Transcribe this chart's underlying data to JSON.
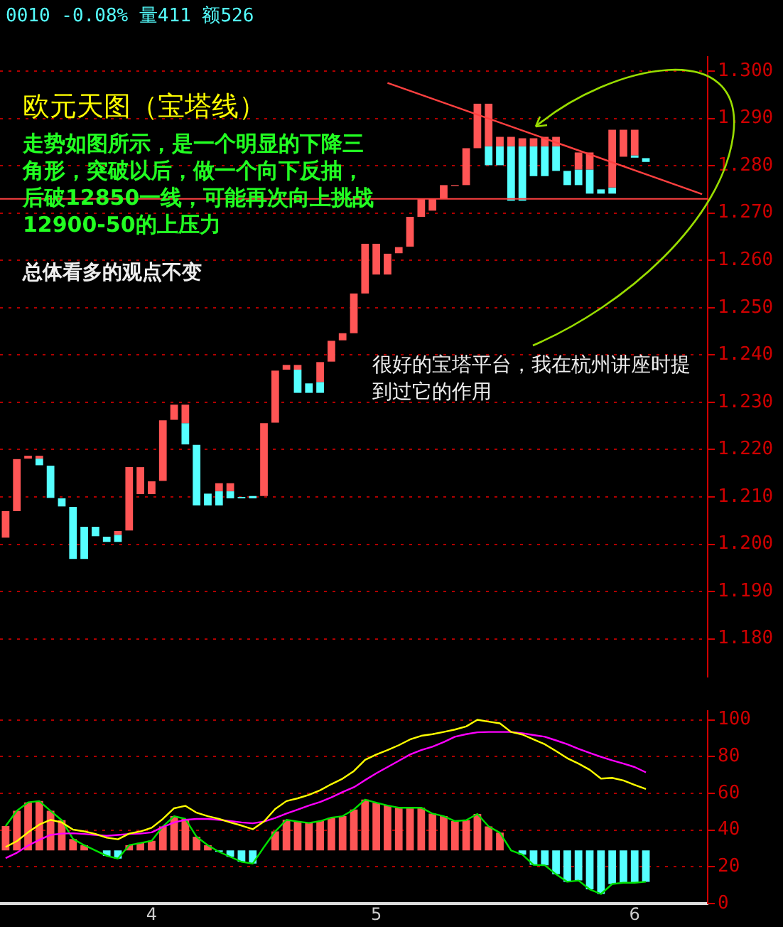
{
  "chart_data": [
    {
      "type": "bar",
      "title": "欧元天图（宝塔线）",
      "annotations": [
        "0010 -0.08% 量411 额526",
        "走势如图所示，是一个明显的下降三角形，突破以后，做一个向下反抽，后破12850一线，可能再次向上挑战12900-50的上压力",
        "总体看多的观点不变",
        "很好的宝塔平台，我在杭州讲座时提到过它的作用"
      ],
      "categories": [
        null,
        null,
        null,
        null,
        null,
        null,
        null,
        null,
        null,
        null,
        null,
        null,
        null,
        null,
        null,
        null,
        null,
        null,
        null,
        null,
        null,
        null,
        null,
        null,
        null,
        null,
        null,
        null,
        null,
        null,
        null,
        null,
        null,
        null,
        null,
        null,
        null,
        null,
        null,
        null,
        null,
        null,
        null,
        null,
        null,
        null,
        null,
        null,
        null,
        null,
        null,
        null,
        null,
        null,
        null,
        null,
        null,
        null,
        null,
        null,
        null,
        null,
        null
      ],
      "series": [
        {
          "color": "#ff5555",
          "base": [
            1.2014,
            1.207,
            1.2181,
            1.2181,
            null,
            null,
            null,
            null,
            null,
            null,
            1.202,
            1.2029,
            1.2106,
            1.2106,
            1.2134,
            1.2263,
            1.2256,
            null,
            null,
            1.2112,
            1.2112,
            null,
            null,
            1.2102,
            1.2257,
            1.2369,
            1.2369,
            null,
            1.2343,
            1.2386,
            1.2431,
            1.2446,
            1.253,
            1.257,
            1.257,
            1.2615,
            1.2629,
            1.2692,
            1.2705,
            1.273,
            1.2757,
            1.2759,
            1.2837,
            1.2841,
            1.2841,
            1.2841,
            1.2841,
            1.2841,
            1.2841,
            1.2841,
            null,
            1.2792,
            1.2792,
            null,
            1.2754,
            1.2819,
            1.2822,
            null,
            null,
            null,
            null,
            null,
            null
          ],
          "values": [
            0.0056,
            0.011,
            0.0006,
            0.0006,
            null,
            null,
            null,
            null,
            null,
            null,
            0.0008,
            0.0134,
            0.0057,
            0.0027,
            0.0128,
            0.0032,
            0.0039,
            null,
            null,
            0.0017,
            0.0017,
            null,
            null,
            0.0154,
            0.011,
            0.001,
            0.001,
            null,
            0.0042,
            0.0044,
            0.0015,
            0.0084,
            0.0105,
            0.0065,
            0.0044,
            0.0013,
            0.0063,
            0.0038,
            0.0025,
            0.0029,
            0.0002,
            0.0078,
            0.0094,
            0.009,
            0.002,
            0.002,
            0.0017,
            0.0017,
            0.002,
            0.002,
            null,
            0.0036,
            0.0036,
            null,
            0.0122,
            0.0057,
            0.0054,
            null,
            null,
            null,
            null,
            null,
            null
          ]
        },
        {
          "color": "#55ffff",
          "base": [
            null,
            null,
            null,
            1.2167,
            1.2098,
            1.208,
            1.1969,
            1.1969,
            1.2017,
            1.2005,
            1.2005,
            null,
            null,
            null,
            null,
            null,
            1.2211,
            1.2082,
            1.2082,
            1.2082,
            1.2097,
            1.2097,
            1.2097,
            null,
            null,
            null,
            1.232,
            1.232,
            1.232,
            null,
            null,
            null,
            null,
            null,
            null,
            null,
            null,
            null,
            null,
            null,
            null,
            null,
            null,
            1.2801,
            1.2801,
            1.2726,
            1.2726,
            1.2778,
            1.2778,
            1.2789,
            1.2759,
            1.2759,
            1.2741,
            1.2741,
            1.2741,
            null,
            1.2817,
            1.2808,
            null,
            null,
            null,
            null,
            null
          ],
          "values": [
            null,
            null,
            null,
            0.0014,
            0.0068,
            0.0017,
            0.011,
            0.0068,
            0.002,
            0.0011,
            0.0015,
            null,
            null,
            null,
            null,
            null,
            0.0045,
            0.0128,
            0.0025,
            0.003,
            0.0015,
            0.0003,
            0.0005,
            null,
            null,
            null,
            0.0049,
            0.002,
            0.0023,
            null,
            null,
            null,
            null,
            null,
            null,
            null,
            null,
            null,
            null,
            null,
            null,
            null,
            null,
            0.004,
            0.004,
            0.0115,
            0.0115,
            0.0063,
            0.0063,
            0.0052,
            0.003,
            0.0033,
            0.0051,
            0.0009,
            0.0013,
            null,
            0.0005,
            0.0008,
            null,
            null,
            null,
            null,
            null
          ]
        },
        {
          "type": "line",
          "color": "#ff4040",
          "values": [
            null,
            null,
            null,
            null,
            null,
            null,
            null,
            null,
            null,
            null,
            null,
            null,
            null,
            null,
            null,
            null,
            null,
            null,
            null,
            null,
            null,
            null,
            null,
            null,
            null,
            null,
            null,
            null,
            null,
            null,
            null,
            null,
            null,
            null,
            1.2975,
            null,
            null,
            null,
            null,
            null,
            null,
            null,
            null,
            null,
            null,
            null,
            null,
            null,
            null,
            null,
            null,
            null,
            null,
            null,
            null,
            null,
            null,
            null,
            null,
            null,
            null,
            null,
            1.274
          ]
        }
      ],
      "ylim": [
        1.172,
        1.303
      ],
      "yticks": [
        {
          "value": 1.18,
          "label": "1.180"
        },
        {
          "value": 1.19,
          "label": "1.190"
        },
        {
          "value": 1.2,
          "label": "1.200"
        },
        {
          "value": 1.21,
          "label": "1.210"
        },
        {
          "value": 1.22,
          "label": "1.220"
        },
        {
          "value": 1.23,
          "label": "1.230"
        },
        {
          "value": 1.24,
          "label": "1.240"
        },
        {
          "value": 1.25,
          "label": "1.250"
        },
        {
          "value": 1.26,
          "label": "1.260"
        },
        {
          "value": 1.27,
          "label": "1.270"
        },
        {
          "value": 1.28,
          "label": "1.280"
        },
        {
          "value": 1.29,
          "label": "1.290"
        },
        {
          "value": 1.3,
          "label": "1.300"
        }
      ],
      "ref_lines": [
        {
          "axis": "y",
          "value": 1.273,
          "color": "#ff4040"
        }
      ],
      "grid": "y",
      "marker": "none"
    },
    {
      "type": "bar",
      "categories": [
        null,
        null,
        null,
        null,
        null,
        null,
        null,
        null,
        null,
        null,
        null,
        null,
        null,
        "4",
        null,
        null,
        null,
        null,
        null,
        null,
        null,
        null,
        null,
        null,
        null,
        null,
        null,
        null,
        null,
        null,
        null,
        null,
        null,
        "5",
        null,
        null,
        null,
        null,
        null,
        null,
        null,
        null,
        null,
        null,
        null,
        null,
        null,
        null,
        null,
        null,
        null,
        null,
        null,
        null,
        null,
        null,
        "6",
        null,
        null,
        null,
        null,
        null,
        null
      ],
      "series": [
        {
          "color": "#ff5555",
          "base": [
            29,
            29,
            29,
            29,
            29,
            29,
            29,
            29,
            null,
            null,
            null,
            29,
            29,
            29,
            29,
            29,
            29,
            29,
            29,
            null,
            null,
            null,
            null,
            null,
            29,
            29,
            29,
            29,
            29,
            29,
            29,
            29,
            29,
            29,
            29,
            29,
            29,
            29,
            29,
            29,
            29,
            29,
            29,
            29,
            29,
            null,
            null,
            null,
            null,
            null,
            null,
            null,
            null,
            null,
            null,
            null,
            null,
            null,
            null,
            null,
            null,
            null,
            null
          ],
          "values": [
            13.2,
            21.5,
            26.1,
            26.8,
            21.5,
            16.4,
            6.2,
            2.8,
            null,
            null,
            null,
            2.8,
            4.0,
            5.2,
            13.0,
            18.6,
            17.1,
            7.4,
            2.8,
            null,
            null,
            null,
            null,
            null,
            10.3,
            16.6,
            15.7,
            14.9,
            15.9,
            17.8,
            18.6,
            22.2,
            27.6,
            25.9,
            24.4,
            23.2,
            23.2,
            23.2,
            20.0,
            18.6,
            15.9,
            16.4,
            19.8,
            13.0,
            9.6,
            null,
            null,
            null,
            null,
            null,
            null,
            null,
            null,
            null,
            null,
            null,
            null,
            null,
            null,
            null,
            null,
            null,
            null
          ]
        },
        {
          "color": "#55ffff",
          "base": [
            null,
            null,
            null,
            null,
            null,
            null,
            null,
            null,
            null,
            29,
            29,
            null,
            null,
            null,
            null,
            null,
            null,
            null,
            null,
            29,
            29,
            29,
            29,
            null,
            null,
            null,
            null,
            null,
            null,
            null,
            null,
            null,
            null,
            null,
            null,
            null,
            null,
            null,
            null,
            null,
            null,
            null,
            null,
            null,
            null,
            null,
            29,
            29,
            29,
            29,
            29,
            29,
            29,
            29,
            29,
            29,
            29,
            29,
            null,
            null,
            null,
            null,
            null
          ],
          "values": [
            null,
            null,
            null,
            null,
            null,
            null,
            null,
            null,
            null,
            -3.0,
            -4.5,
            null,
            null,
            null,
            null,
            null,
            null,
            null,
            null,
            -0.8,
            -3.5,
            -6.2,
            -7.2,
            null,
            null,
            null,
            null,
            null,
            null,
            null,
            null,
            null,
            null,
            null,
            null,
            null,
            null,
            null,
            null,
            null,
            null,
            null,
            null,
            null,
            null,
            null,
            -2.3,
            -7.9,
            -8.1,
            -13.0,
            -17.1,
            -16.4,
            -21.2,
            -23.7,
            -18.3,
            -17.6,
            -17.6,
            -17.1,
            null,
            null,
            null,
            null,
            null
          ]
        },
        {
          "type": "line",
          "color": "#ffff00",
          "values": [
            30.8,
            34,
            38.8,
            43,
            45.6,
            44.2,
            40.3,
            39.3,
            37.9,
            35.9,
            35.0,
            38.1,
            39.3,
            41.3,
            46.1,
            51.9,
            53.2,
            49.5,
            47.6,
            46.1,
            44.2,
            42.5,
            40.5,
            44.7,
            51.5,
            55.8,
            57.3,
            59.2,
            61.7,
            65,
            68,
            72.1,
            78.2,
            81.1,
            83.5,
            86.2,
            89.3,
            91.3,
            92.2,
            93.4,
            94.7,
            96.4,
            100,
            99,
            98.1,
            93.4,
            92,
            89.3,
            86.7,
            83,
            79.1,
            76.2,
            72.8,
            68,
            68.4,
            67,
            64.6,
            62.4,
            null,
            null,
            null,
            null,
            null
          ]
        },
        {
          "type": "line",
          "color": "#ff00ff",
          "values": [
            24.8,
            27.7,
            31.6,
            34.7,
            37.4,
            38.1,
            38.3,
            37.9,
            37.4,
            36.9,
            37.4,
            37.9,
            38.1,
            38.8,
            41.7,
            44.2,
            45.6,
            46.1,
            46.1,
            45.6,
            44.9,
            44.2,
            43.7,
            44.7,
            46.6,
            49,
            51.2,
            53.4,
            55.3,
            57.8,
            60.7,
            63.3,
            67.2,
            70.9,
            74.3,
            77.7,
            81.1,
            83.5,
            85.4,
            87.9,
            90.8,
            92.2,
            93.2,
            93.4,
            93.4,
            93.4,
            92.7,
            91.7,
            90.8,
            88.8,
            86.7,
            84.2,
            82,
            79.9,
            77.9,
            76.2,
            74.3,
            71.4,
            null,
            null,
            null,
            null,
            null
          ]
        },
        {
          "type": "line",
          "color": "#00e000",
          "values": [
            42.2,
            50.5,
            55.1,
            55.8,
            50.5,
            45.4,
            35.2,
            31.8,
            28.9,
            26.0,
            24.5,
            31.8,
            33.0,
            34.2,
            42.0,
            47.6,
            46.1,
            36.4,
            31.8,
            28.2,
            25.5,
            22.8,
            21.8,
            30.8,
            39.3,
            45.6,
            44.7,
            43.9,
            44.9,
            46.8,
            47.6,
            51.2,
            56.6,
            54.9,
            53.4,
            52.2,
            52.2,
            52.2,
            49.0,
            47.6,
            44.9,
            45.4,
            48.8,
            42.0,
            38.6,
            28.9,
            26.7,
            21.1,
            20.9,
            16.0,
            11.9,
            12.6,
            7.8,
            5.3,
            10.7,
            11.4,
            11.4,
            11.9,
            null,
            null,
            null,
            null,
            null
          ]
        }
      ],
      "ylim": [
        0,
        105
      ],
      "yticks": [
        0,
        20,
        40,
        60,
        80,
        100
      ],
      "grid": "y",
      "marker": "none"
    }
  ]
}
